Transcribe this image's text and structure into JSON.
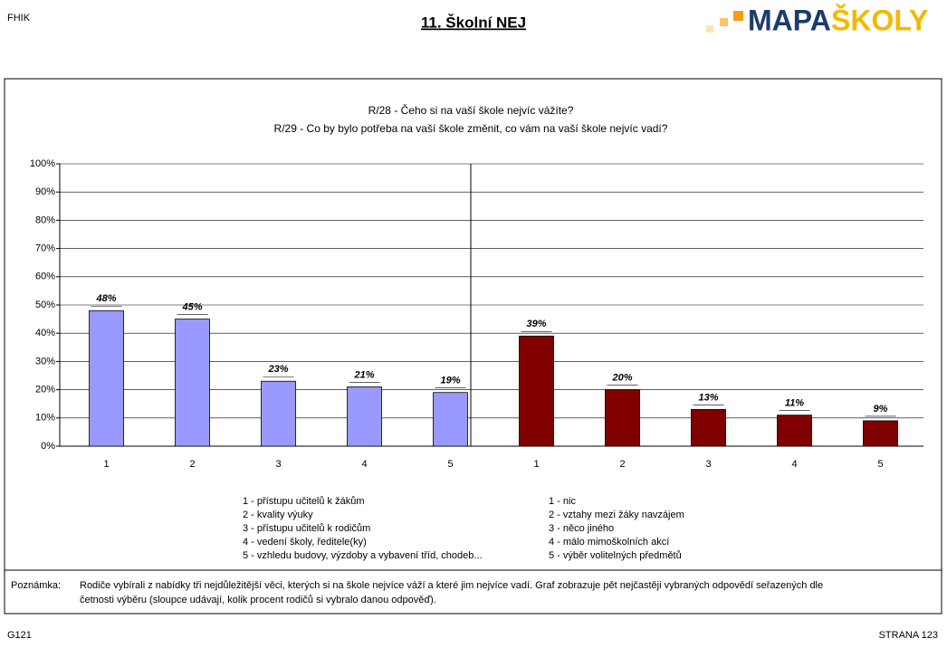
{
  "header": {
    "code": "FHIK",
    "title": "11. Školní NEJ",
    "logo_a": "MAPA",
    "logo_b": "ŠKOLY"
  },
  "chart_data": {
    "type": "bar",
    "title": [
      "R/28 - Čeho si na vaší škole nejvíc vážíte?",
      "R/29 - Co by bylo potřeba na vaší škole změnit, co vám na vaší škole nejvíc vadí?"
    ],
    "ylim": [
      0,
      100
    ],
    "yticks": [
      {
        "value": 0,
        "label": "0%"
      },
      {
        "value": 10,
        "label": "10%"
      },
      {
        "value": 20,
        "label": "20%"
      },
      {
        "value": 30,
        "label": "30%"
      },
      {
        "value": 40,
        "label": "40%"
      },
      {
        "value": 50,
        "label": "50%"
      },
      {
        "value": 60,
        "label": "60%"
      },
      {
        "value": 70,
        "label": "70%"
      },
      {
        "value": 80,
        "label": "80%"
      },
      {
        "value": 90,
        "label": "90%"
      },
      {
        "value": 100,
        "label": "100%"
      }
    ],
    "grid": true,
    "series": [
      {
        "color": "#9999ff",
        "categories": [
          "1",
          "2",
          "3",
          "4",
          "5"
        ],
        "values": [
          48,
          45,
          23,
          21,
          19
        ],
        "value_labels": [
          "48%",
          "45%",
          "23%",
          "21%",
          "19%"
        ],
        "descriptions": [
          "1 - přístupu učitelů k žákům",
          "2 - kvality výuky",
          "3 - přístupu učitelů k rodičům",
          "4 - vedení školy, ředitele(ky)",
          "5 - vzhledu budovy, výzdoby a vybavení tříd, chodeb..."
        ]
      },
      {
        "color": "#800000",
        "categories": [
          "1",
          "2",
          "3",
          "4",
          "5"
        ],
        "values": [
          39,
          20,
          13,
          11,
          9
        ],
        "value_labels": [
          "39%",
          "20%",
          "13%",
          "11%",
          "9%"
        ],
        "descriptions": [
          "1 - nic",
          "2 - vztahy mezi žáky navzájem",
          "3 - něco jiného",
          "4 - málo mimoškolních akcí",
          "5 - výběr volitelných předmětů"
        ]
      }
    ]
  },
  "note": {
    "label": "Poznámka:",
    "lines": [
      "Rodiče vybírali z nabídky tři nejdůležitější věci, kterých si na škole nejvíce váží a které jim nejvíce vadí. Graf zobrazuje pět nejčastěji vybraných odpovědí seřazených dle",
      "četnosti výběru (sloupce udávají, kolik procent rodičů si vybralo danou odpověď)."
    ]
  },
  "footer": {
    "left": "G121",
    "right": "STRANA 123"
  }
}
